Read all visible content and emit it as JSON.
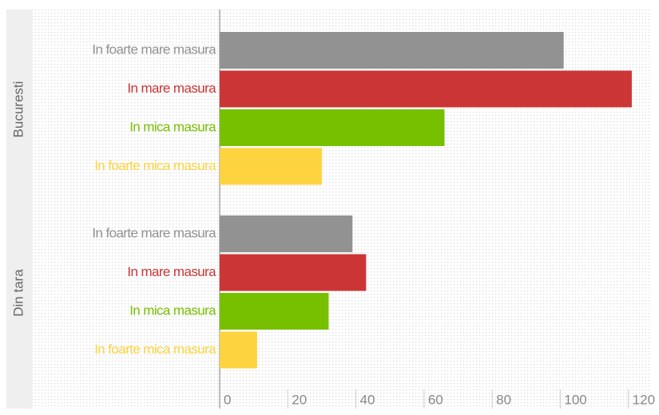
{
  "chart_data": {
    "type": "bar",
    "categories": [
      "In foarte mare masura",
      "In mare masura",
      "In mica masura",
      "In foarte mica masura"
    ],
    "colors": [
      "#929292",
      "#cc3535",
      "#77c000",
      "#fdd33f"
    ],
    "groups": [
      {
        "name": "Bucuresti",
        "values": [
          101,
          121,
          66,
          30
        ]
      },
      {
        "name": "Din tara",
        "values": [
          39,
          43,
          32,
          11
        ]
      }
    ],
    "xlim": [
      0,
      125
    ],
    "xticks": [
      0,
      20,
      40,
      60,
      80,
      100,
      120
    ]
  }
}
